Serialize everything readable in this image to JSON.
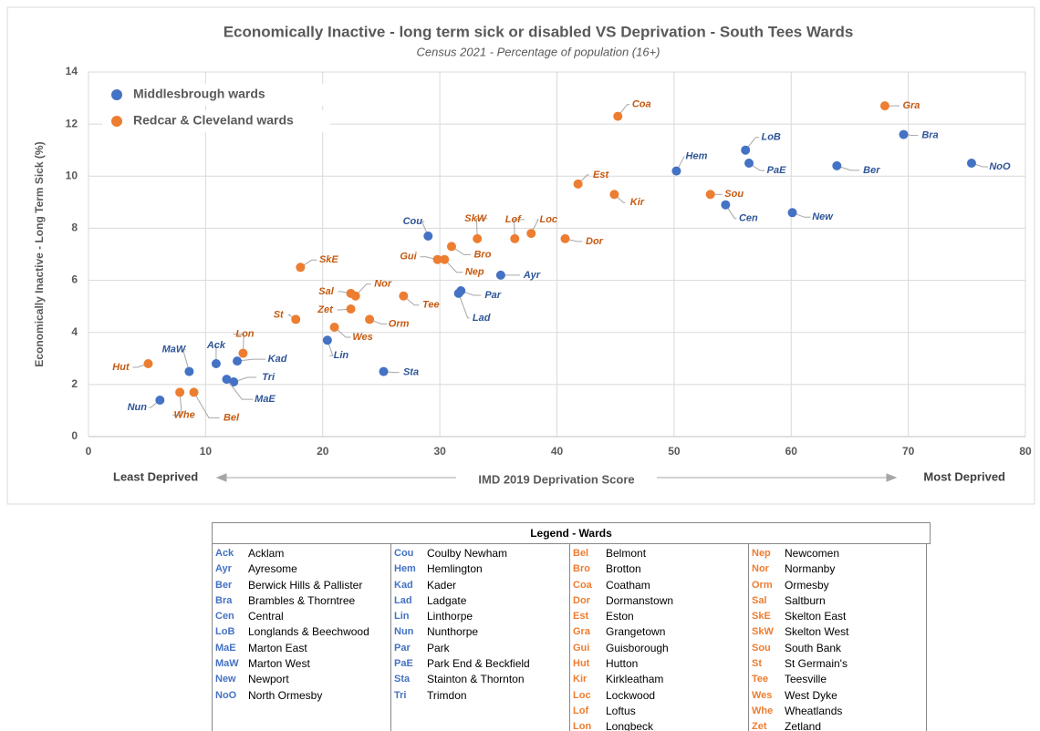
{
  "chart_data": {
    "type": "scatter",
    "title": "Economically Inactive - long term sick or disabled VS Deprivation - South Tees Wards",
    "subtitle": "Census 2021 - Percentage of population (16+)",
    "x_label": "IMD 2019 Deprivation Score",
    "y_label": "Economically Inactive - Long Term Sick (%)",
    "annotations": [
      "Least Deprived",
      "Most Deprived"
    ],
    "xlim": [
      0,
      80
    ],
    "xticks": [
      0,
      10,
      20,
      30,
      40,
      50,
      60,
      70,
      80
    ],
    "ylim": [
      0,
      14
    ],
    "yticks": [
      0,
      2,
      4,
      6,
      8,
      10,
      12,
      14
    ],
    "grid": true,
    "legend": "upper left",
    "series": [
      {
        "name": "Middlesbrough wards",
        "color": "#4472c4",
        "labels": [
          "Cou",
          "Ayr",
          "Par",
          "Lad",
          "Lin",
          "Sta",
          "Ack",
          "Kad",
          "Tri",
          "MaE",
          "MaW",
          "Nun",
          "Hem",
          "LoB",
          "PaE",
          "Cen",
          "New",
          "Ber",
          "Bra",
          "NoO"
        ],
        "x": [
          29.0,
          35.2,
          31.8,
          31.6,
          20.4,
          25.2,
          10.9,
          12.7,
          12.4,
          11.8,
          8.6,
          6.1,
          50.2,
          56.1,
          56.4,
          54.4,
          60.1,
          63.9,
          69.6,
          75.4
        ],
        "values": [
          7.7,
          6.2,
          5.6,
          5.5,
          3.7,
          2.5,
          2.8,
          2.9,
          2.1,
          2.2,
          2.5,
          1.4,
          10.2,
          11.0,
          10.5,
          8.9,
          8.6,
          10.4,
          11.6,
          10.5
        ]
      },
      {
        "name": "Redcar & Cleveland wards",
        "color": "#ed7d31",
        "labels": [
          "Coa",
          "Gra",
          "Est",
          "Kir",
          "Sou",
          "SkW",
          "Lof",
          "Loc",
          "Dor",
          "Bro",
          "Gui",
          "Nep",
          "SkE",
          "Sal",
          "Nor",
          "Tee",
          "Zet",
          "St",
          "Orm",
          "Wes",
          "Lon",
          "Hut",
          "Whe",
          "Bel"
        ],
        "x": [
          45.2,
          68.0,
          41.8,
          44.9,
          53.1,
          33.2,
          36.4,
          37.8,
          40.7,
          31.0,
          29.8,
          30.4,
          18.1,
          22.4,
          22.8,
          26.9,
          22.4,
          17.7,
          24.0,
          21.0,
          13.2,
          5.1,
          7.8,
          9.0
        ],
        "values": [
          12.3,
          12.7,
          9.7,
          9.3,
          9.3,
          7.6,
          7.6,
          7.8,
          7.6,
          7.3,
          6.8,
          6.8,
          6.5,
          5.5,
          5.4,
          5.4,
          4.9,
          4.5,
          4.5,
          4.2,
          3.2,
          2.8,
          1.7,
          1.7
        ]
      }
    ]
  },
  "legend_table": {
    "title": "Legend - Wards",
    "columns": [
      {
        "color": "#4472c4",
        "rows": [
          [
            "Ack",
            "Acklam"
          ],
          [
            "Ayr",
            "Ayresome"
          ],
          [
            "Ber",
            "Berwick Hills & Pallister"
          ],
          [
            "Bra",
            "Brambles & Thorntree"
          ],
          [
            "Cen",
            "Central"
          ],
          [
            "LoB",
            "Longlands & Beechwood"
          ],
          [
            "MaE",
            "Marton East"
          ],
          [
            "MaW",
            "Marton West"
          ],
          [
            "New",
            "Newport"
          ],
          [
            "NoO",
            "North Ormesby"
          ]
        ]
      },
      {
        "color": "#4472c4",
        "rows": [
          [
            "Cou",
            "Coulby Newham"
          ],
          [
            "Hem",
            "Hemlington"
          ],
          [
            "Kad",
            "Kader"
          ],
          [
            "Lad",
            "Ladgate"
          ],
          [
            "Lin",
            "Linthorpe"
          ],
          [
            "Nun",
            "Nunthorpe"
          ],
          [
            "Par",
            "Park"
          ],
          [
            "PaE",
            "Park End & Beckfield"
          ],
          [
            "Sta",
            "Stainton & Thornton"
          ],
          [
            "Tri",
            "Trimdon"
          ]
        ]
      },
      {
        "color": "#ed7d31",
        "rows": [
          [
            "Bel",
            "Belmont"
          ],
          [
            "Bro",
            "Brotton"
          ],
          [
            "Coa",
            "Coatham"
          ],
          [
            "Dor",
            "Dormanstown"
          ],
          [
            "Est",
            "Eston"
          ],
          [
            "Gra",
            "Grangetown"
          ],
          [
            "Gui",
            "Guisborough"
          ],
          [
            "Hut",
            "Hutton"
          ],
          [
            "Kir",
            "Kirkleatham"
          ],
          [
            "Loc",
            "Lockwood"
          ],
          [
            "Lof",
            "Loftus"
          ],
          [
            "Lon",
            "Longbeck"
          ]
        ]
      },
      {
        "color": "#ed7d31",
        "rows": [
          [
            "Nep",
            "Newcomen"
          ],
          [
            "Nor",
            "Normanby"
          ],
          [
            "Orm",
            "Ormesby"
          ],
          [
            "Sal",
            "Saltburn"
          ],
          [
            "SkE",
            "Skelton East"
          ],
          [
            "SkW",
            "Skelton West"
          ],
          [
            "Sou",
            "South Bank"
          ],
          [
            "St",
            "St Germain's"
          ],
          [
            "Tee",
            "Teesville"
          ],
          [
            "Wes",
            "West Dyke"
          ],
          [
            "Whe",
            "Wheatlands"
          ],
          [
            "Zet",
            "Zetland"
          ]
        ]
      }
    ]
  }
}
